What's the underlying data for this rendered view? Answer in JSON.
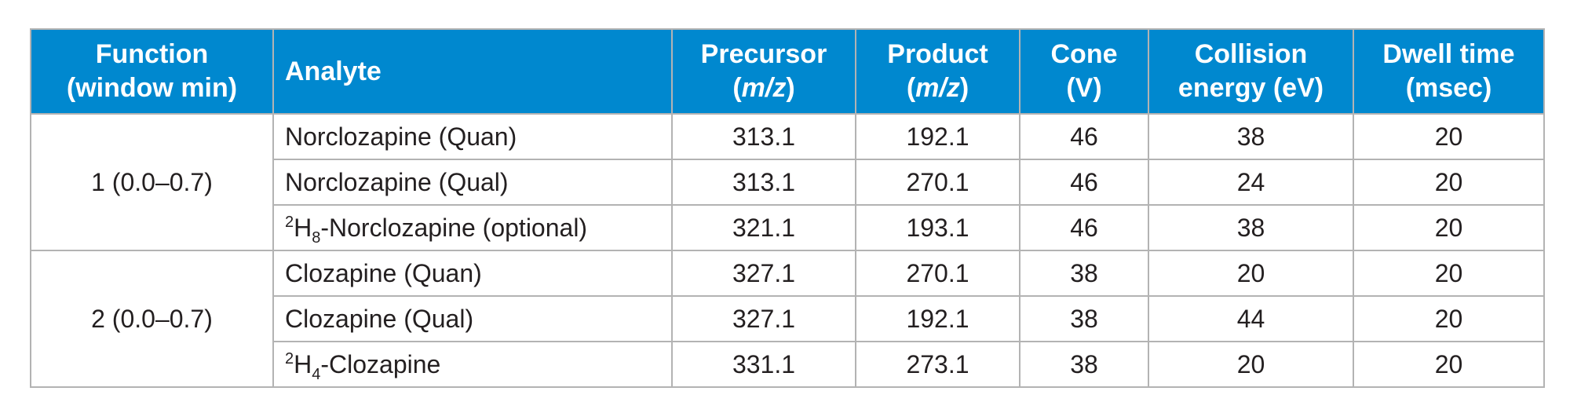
{
  "table": {
    "headers": {
      "function_line1": "Function",
      "function_line2": "(window min)",
      "analyte": "Analyte",
      "precursor_line1": "Precursor",
      "precursor_line2_open": "(",
      "precursor_line2_unit": "m/z",
      "precursor_line2_close": ")",
      "product_line1": "Product",
      "product_line2_open": "(",
      "product_line2_unit": "m/z",
      "product_line2_close": ")",
      "cone_line1": "Cone",
      "cone_line2": "(V)",
      "collision_line1": "Collision",
      "collision_line2": "energy (eV)",
      "dwell_line1": "Dwell time",
      "dwell_line2": "(msec)"
    },
    "groups": [
      {
        "function": "1 (0.0–0.7)",
        "rows": [
          {
            "analyte": "Norclozapine (Quan)",
            "precursor": "313.1",
            "product": "192.1",
            "cone": "46",
            "collision": "38",
            "dwell": "20"
          },
          {
            "analyte": "Norclozapine (Qual)",
            "precursor": "313.1",
            "product": "270.1",
            "cone": "46",
            "collision": "24",
            "dwell": "20"
          },
          {
            "analyte_sup": "2",
            "analyte_prefix": "H",
            "analyte_sub": "8",
            "analyte_rest": "-Norclozapine (optional)",
            "precursor": "321.1",
            "product": "193.1",
            "cone": "46",
            "collision": "38",
            "dwell": "20"
          }
        ]
      },
      {
        "function": "2 (0.0–0.7)",
        "rows": [
          {
            "analyte": "Clozapine (Quan)",
            "precursor": "327.1",
            "product": "270.1",
            "cone": "38",
            "collision": "20",
            "dwell": "20"
          },
          {
            "analyte": "Clozapine (Qual)",
            "precursor": "327.1",
            "product": "192.1",
            "cone": "38",
            "collision": "44",
            "dwell": "20"
          },
          {
            "analyte_sup": "2",
            "analyte_prefix": "H",
            "analyte_sub": "4",
            "analyte_rest": "-Clozapine",
            "precursor": "331.1",
            "product": "273.1",
            "cone": "38",
            "collision": "20",
            "dwell": "20"
          }
        ]
      }
    ]
  },
  "colors": {
    "header_background": "#0088cf",
    "header_text": "#ffffff",
    "grid_lines": "#b3b3b3",
    "body_text": "#231f20"
  }
}
